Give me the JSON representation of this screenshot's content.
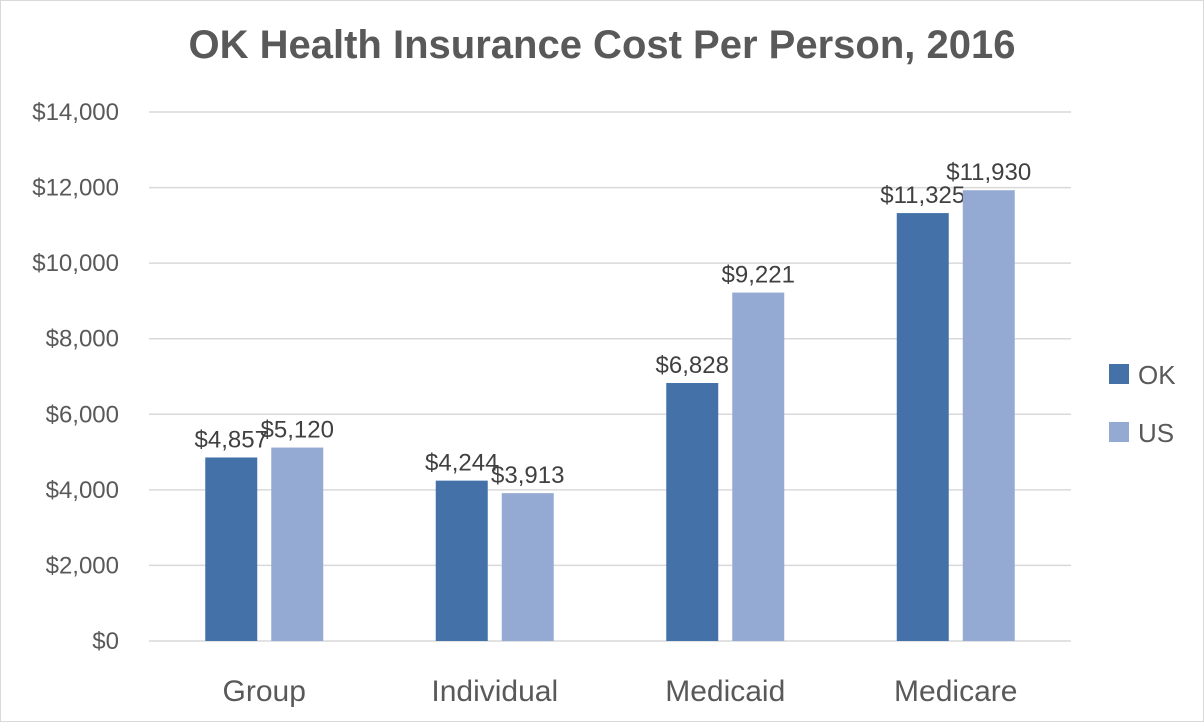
{
  "chart_data": {
    "type": "bar",
    "title": "OK Health Insurance Cost Per Person, 2016",
    "categories": [
      "Group",
      "Individual",
      "Medicaid",
      "Medicare"
    ],
    "series": [
      {
        "name": "OK",
        "color": "#4472a8",
        "values": [
          4857,
          4244,
          6828,
          11325
        ],
        "labels": [
          "$4,857",
          "$4,244",
          "$6,828",
          "$11,325"
        ]
      },
      {
        "name": "US",
        "color": "#95aad2",
        "values": [
          5120,
          3913,
          9221,
          11930
        ],
        "labels": [
          "$5,120",
          "$3,913",
          "$9,221",
          "$11,930"
        ]
      }
    ],
    "xlabel": "",
    "ylabel": "",
    "ylim": [
      0,
      14000
    ],
    "y_ticks": [
      0,
      2000,
      4000,
      6000,
      8000,
      10000,
      12000,
      14000
    ],
    "y_tick_labels": [
      "$0",
      "$2,000",
      "$4,000",
      "$6,000",
      "$8,000",
      "$10,000",
      "$12,000",
      "$14,000"
    ],
    "grid": true,
    "legend_position": "right"
  }
}
